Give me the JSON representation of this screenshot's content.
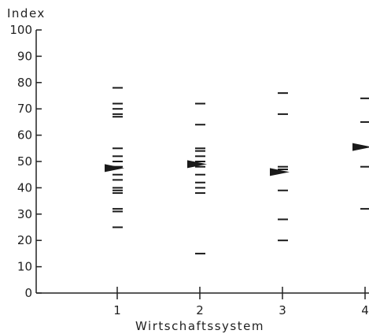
{
  "chart_data": {
    "type": "scatter",
    "title": "",
    "ylabel": "Index",
    "xlabel": "Wirtschaftssystem",
    "ylim": [
      0,
      100
    ],
    "yticks": [
      0,
      10,
      20,
      30,
      40,
      50,
      60,
      70,
      80,
      90,
      100
    ],
    "xticks": [
      1,
      2,
      3,
      4
    ],
    "grid": false,
    "legend": "none",
    "colors": {
      "marks": "#1a1a1a",
      "axis": "#222222",
      "background": "#ffffff"
    },
    "series": [
      {
        "x": 1,
        "values": [
          78,
          72,
          70,
          68,
          67,
          55,
          52,
          50,
          48,
          45,
          43,
          40,
          39,
          38,
          32,
          31,
          25
        ],
        "marker_value": 47.5
      },
      {
        "x": 2,
        "values": [
          72,
          64,
          55,
          54,
          52,
          50,
          48,
          45,
          42,
          40,
          38,
          15
        ],
        "marker_value": 49
      },
      {
        "x": 3,
        "values": [
          76,
          68,
          48,
          47,
          39,
          28,
          20
        ],
        "marker_value": 46
      },
      {
        "x": 4,
        "values": [
          74,
          65,
          48,
          32
        ],
        "marker_value": 55.5
      }
    ]
  }
}
